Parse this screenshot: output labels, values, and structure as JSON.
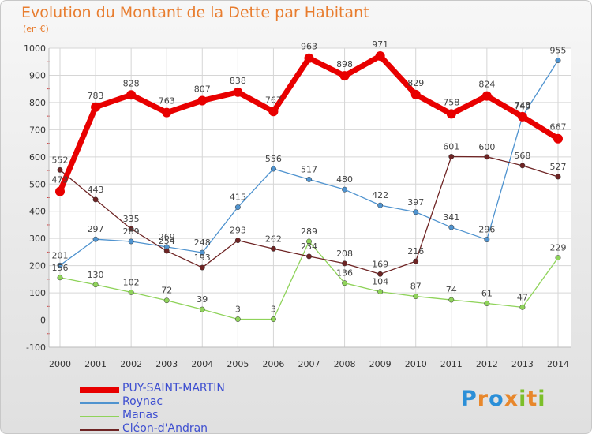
{
  "title": "Evolution du Montant de la Dette par Habitant",
  "unit_label": "(en €)",
  "logo": {
    "letters": [
      "P",
      "r",
      "o",
      "x",
      "i",
      "t",
      "i"
    ],
    "colors": [
      "#2b8fd8",
      "#e8872b",
      "#2b8fd8",
      "#e8872b",
      "#7cbf2a",
      "#e8872b",
      "#7cbf2a"
    ]
  },
  "chart_data": {
    "type": "line",
    "x": [
      2000,
      2001,
      2002,
      2003,
      2004,
      2005,
      2006,
      2007,
      2008,
      2009,
      2010,
      2011,
      2012,
      2013,
      2014
    ],
    "x_tick_labels": [
      "2000",
      "2001",
      "2002",
      "2003",
      "2004",
      "2005",
      "2006",
      "2007",
      "2008",
      "2009",
      "2010",
      "2011",
      "2012",
      "2013",
      "2014"
    ],
    "ylim": [
      -100,
      1000
    ],
    "y_ticks": [
      -100,
      0,
      100,
      200,
      300,
      400,
      500,
      600,
      700,
      800,
      900,
      1000
    ],
    "y_tick_labels": [
      "-100",
      "0",
      "100",
      "200",
      "300",
      "400",
      "500",
      "600",
      "700",
      "800",
      "900",
      "1000"
    ],
    "grid": true,
    "legend_position": "bottom-left",
    "series": [
      {
        "name": "PUY-SAINT-MARTIN",
        "color": "#e80000",
        "values": [
          473,
          783,
          828,
          763,
          807,
          838,
          767,
          963,
          898,
          971,
          829,
          758,
          824,
          748,
          667
        ],
        "labels": [
          "473",
          "783",
          "828",
          "763",
          "807",
          "838",
          "767",
          "963",
          "898",
          "971",
          "829",
          "758",
          "824",
          "748",
          "667"
        ]
      },
      {
        "name": "Roynac",
        "color": "#4f93cf",
        "values": [
          201,
          297,
          289,
          269,
          248,
          415,
          556,
          517,
          480,
          422,
          397,
          341,
          296,
          749,
          955
        ],
        "labels": [
          "201",
          "297",
          "289",
          "269",
          "248",
          "415",
          "556",
          "517",
          "480",
          "422",
          "397",
          "341",
          "296",
          "749",
          "955"
        ]
      },
      {
        "name": "Manas",
        "color": "#8fd35a",
        "values": [
          156,
          130,
          102,
          72,
          39,
          3,
          3,
          289,
          136,
          104,
          87,
          74,
          61,
          47,
          229
        ],
        "labels": [
          "156",
          "130",
          "102",
          "72",
          "39",
          "3",
          "3",
          "289",
          "136",
          "104",
          "87",
          "74",
          "61",
          "47",
          "229"
        ]
      },
      {
        "name": "Cléon-d'Andran",
        "color": "#6e2424",
        "values": [
          552,
          443,
          335,
          254,
          193,
          293,
          262,
          234,
          208,
          169,
          216,
          601,
          600,
          568,
          527
        ],
        "labels": [
          "552",
          "443",
          "335",
          "254",
          "193",
          "293",
          "262",
          "234",
          "208",
          "169",
          "216",
          "601",
          "600",
          "568",
          "527"
        ]
      }
    ]
  }
}
